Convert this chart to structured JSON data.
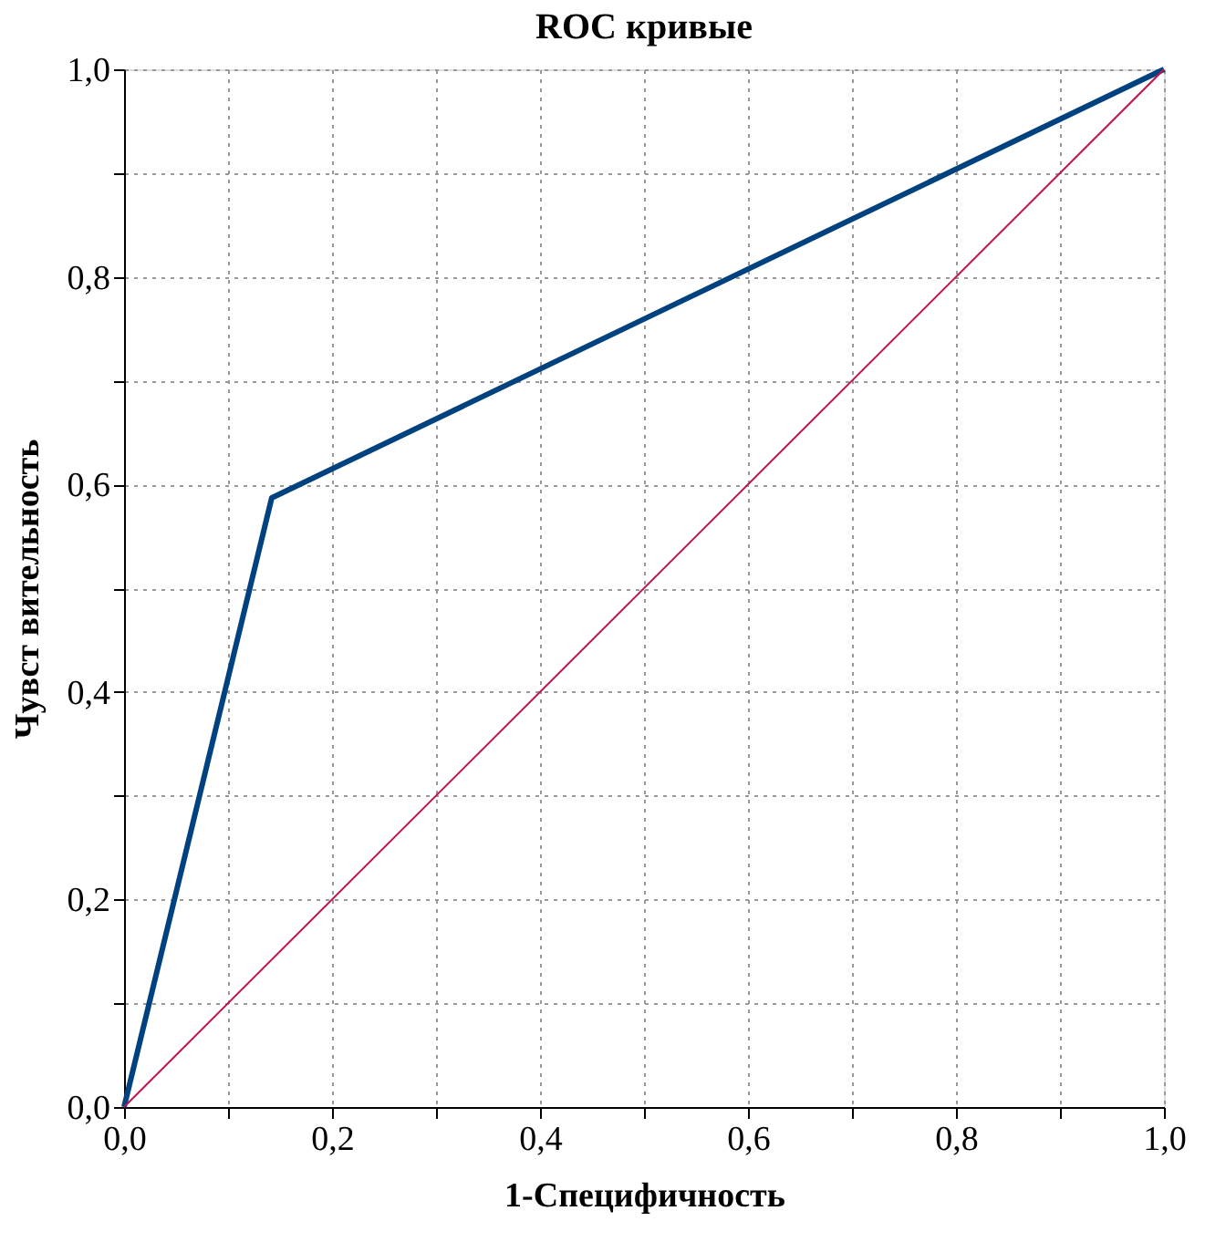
{
  "chart_data": {
    "type": "line",
    "title": "ROC кривые",
    "xlabel": "1-Специфичность",
    "ylabel": "Чувст вительность",
    "series": [
      {
        "color": "#00427f",
        "x": [
          0,
          0.142,
          1
        ],
        "values": [
          0,
          0.587,
          1
        ]
      },
      {
        "color": "#c0144a",
        "x": [
          0,
          1
        ],
        "values": [
          0,
          1
        ]
      }
    ],
    "xlim": [
      0,
      1
    ],
    "ylim": [
      0,
      1
    ],
    "xticks": [
      {
        "value": 0,
        "label": "0,0"
      },
      {
        "value": 0.1,
        "label": null
      },
      {
        "value": 0.2,
        "label": "0,2"
      },
      {
        "value": 0.3,
        "label": null
      },
      {
        "value": 0.4,
        "label": "0,4"
      },
      {
        "value": 0.5,
        "label": null
      },
      {
        "value": 0.6,
        "label": "0,6"
      },
      {
        "value": 0.7,
        "label": null
      },
      {
        "value": 0.8,
        "label": "0,8"
      },
      {
        "value": 0.9,
        "label": null
      },
      {
        "value": 1,
        "label": "1,0"
      }
    ],
    "yticks": [
      {
        "value": 0,
        "label": "0,0"
      },
      {
        "value": 0.1,
        "label": null
      },
      {
        "value": 0.2,
        "label": "0,2"
      },
      {
        "value": 0.3,
        "label": null
      },
      {
        "value": 0.4,
        "label": "0,4"
      },
      {
        "value": 0.5,
        "label": null
      },
      {
        "value": 0.6,
        "label": "0,6"
      },
      {
        "value": 0.7,
        "label": null
      },
      {
        "value": 0.8,
        "label": "0,8"
      },
      {
        "value": 0.9,
        "label": null
      },
      {
        "value": 1,
        "label": "1,0"
      }
    ],
    "grid": true,
    "marker": "none",
    "line_style": "solid"
  }
}
